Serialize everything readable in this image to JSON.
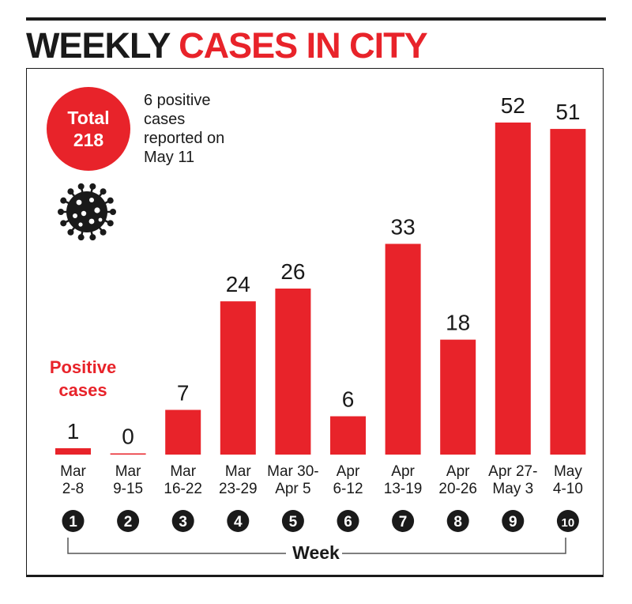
{
  "header": {
    "title_part1": "WEEKLY",
    "title_part2": "CASES IN CITY"
  },
  "total": {
    "label": "Total",
    "value": "218"
  },
  "note": "6 positive cases reported on May 11",
  "legend_label": "Positive cases",
  "icons": {
    "virus": "virus-icon"
  },
  "colors": {
    "accent": "#e8232a",
    "ink": "#1a1a1a"
  },
  "chart_data": {
    "type": "bar",
    "categories": [
      "Mar 2-8",
      "Mar 9-15",
      "Mar 16-22",
      "Mar 23-29",
      "Mar 30- Apr 5",
      "Apr 6-12",
      "Apr 13-19",
      "Apr 20-26",
      "Apr 27- May 3",
      "May 4-10"
    ],
    "category_lines": [
      [
        "Mar",
        "2-8"
      ],
      [
        "Mar",
        "9-15"
      ],
      [
        "Mar",
        "16-22"
      ],
      [
        "Mar",
        "23-29"
      ],
      [
        "Mar 30-",
        "Apr 5"
      ],
      [
        "Apr",
        "6-12"
      ],
      [
        "Apr",
        "13-19"
      ],
      [
        "Apr",
        "20-26"
      ],
      [
        "Apr 27-",
        "May 3"
      ],
      [
        "May",
        "4-10"
      ]
    ],
    "week_numbers": [
      "1",
      "2",
      "3",
      "4",
      "5",
      "6",
      "7",
      "8",
      "9",
      "10"
    ],
    "values": [
      1,
      0,
      7,
      24,
      26,
      6,
      33,
      18,
      52,
      51
    ],
    "xlabel": "Week",
    "ylabel": "Positive cases",
    "ylim": [
      0,
      52
    ],
    "grid": false,
    "data_labels": true
  }
}
